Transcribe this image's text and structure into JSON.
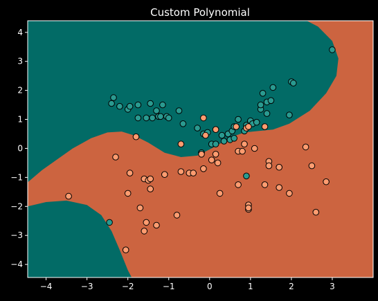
{
  "chart_data": {
    "type": "scatter",
    "title": "Custom Polynomial",
    "xlabel": "",
    "ylabel": "",
    "xlim": [
      -4.45,
      4.0
    ],
    "ylim": [
      -4.45,
      4.4
    ],
    "xticks": [
      -4,
      -3,
      -2,
      -1,
      0,
      1,
      2,
      3
    ],
    "yticks": [
      -4,
      -3,
      -2,
      -1,
      0,
      1,
      2,
      3,
      4
    ],
    "grid": false,
    "background_color": "#000000",
    "region_colors": {
      "class_0": "#026b66",
      "class_1": "#cc6440"
    },
    "point_colors": {
      "class_0": "#2a9a90",
      "class_1": "#ff9c70"
    },
    "series": [
      {
        "class": 0,
        "points": [
          [
            -2.4,
            1.55
          ],
          [
            -2.35,
            1.75
          ],
          [
            -2.2,
            1.45
          ],
          [
            -2.0,
            1.35
          ],
          [
            -1.95,
            1.45
          ],
          [
            -1.75,
            1.5
          ],
          [
            -1.75,
            1.05
          ],
          [
            -1.55,
            1.05
          ],
          [
            -1.45,
            1.55
          ],
          [
            -1.4,
            1.05
          ],
          [
            -1.3,
            1.3
          ],
          [
            -1.25,
            1.1
          ],
          [
            -1.2,
            1.1
          ],
          [
            -1.15,
            1.5
          ],
          [
            -1.05,
            1.1
          ],
          [
            -1.0,
            1.05
          ],
          [
            -0.75,
            1.3
          ],
          [
            -0.65,
            0.85
          ],
          [
            -0.3,
            0.7
          ],
          [
            -0.2,
            -0.15
          ],
          [
            -0.15,
            0.5
          ],
          [
            -0.05,
            0.55
          ],
          [
            0.05,
            0.15
          ],
          [
            0.15,
            0.15
          ],
          [
            0.3,
            0.45
          ],
          [
            0.35,
            0.25
          ],
          [
            0.45,
            0.5
          ],
          [
            0.5,
            0.3
          ],
          [
            0.55,
            0.6
          ],
          [
            0.6,
            0.75
          ],
          [
            0.6,
            0.35
          ],
          [
            0.7,
            1.0
          ],
          [
            0.85,
            0.6
          ],
          [
            0.9,
            0.8
          ],
          [
            1.0,
            0.95
          ],
          [
            1.05,
            0.85
          ],
          [
            1.15,
            0.9
          ],
          [
            1.25,
            1.35
          ],
          [
            1.25,
            1.5
          ],
          [
            1.3,
            1.9
          ],
          [
            1.4,
            1.2
          ],
          [
            1.4,
            1.6
          ],
          [
            1.5,
            1.65
          ],
          [
            1.55,
            2.1
          ],
          [
            1.95,
            1.15
          ],
          [
            2.0,
            2.3
          ],
          [
            2.05,
            2.25
          ],
          [
            3.0,
            3.4
          ],
          [
            -2.45,
            -2.55
          ],
          [
            0.9,
            -0.95
          ]
        ]
      },
      {
        "class": 1,
        "points": [
          [
            -3.45,
            -1.65
          ],
          [
            -2.3,
            -0.3
          ],
          [
            -2.05,
            -3.5
          ],
          [
            -2.0,
            -1.55
          ],
          [
            -1.95,
            -0.85
          ],
          [
            -1.8,
            0.4
          ],
          [
            -1.7,
            -2.05
          ],
          [
            -1.6,
            -2.85
          ],
          [
            -1.6,
            -1.05
          ],
          [
            -1.55,
            -2.55
          ],
          [
            -1.5,
            -1.1
          ],
          [
            -1.45,
            -1.4
          ],
          [
            -1.45,
            -1.05
          ],
          [
            -1.3,
            -2.65
          ],
          [
            -1.1,
            -0.9
          ],
          [
            -0.8,
            -2.3
          ],
          [
            -0.7,
            -0.8
          ],
          [
            -0.7,
            0.15
          ],
          [
            -0.5,
            -0.85
          ],
          [
            -0.4,
            -0.85
          ],
          [
            -0.15,
            1.05
          ],
          [
            -0.15,
            -0.7
          ],
          [
            -0.1,
            0.45
          ],
          [
            0.15,
            -0.2
          ],
          [
            0.15,
            0.65
          ],
          [
            0.2,
            -0.5
          ],
          [
            0.25,
            -1.55
          ],
          [
            0.65,
            0.75
          ],
          [
            0.7,
            -1.25
          ],
          [
            0.7,
            -0.1
          ],
          [
            0.8,
            -0.1
          ],
          [
            0.85,
            0.15
          ],
          [
            0.9,
            0.7
          ],
          [
            0.95,
            0.75
          ],
          [
            0.95,
            -1.95
          ],
          [
            0.95,
            -2.1
          ],
          [
            0.95,
            -2.05
          ],
          [
            1.1,
            0.0
          ],
          [
            1.35,
            0.75
          ],
          [
            1.35,
            -1.25
          ],
          [
            1.45,
            -0.45
          ],
          [
            1.45,
            -0.6
          ],
          [
            1.7,
            -0.65
          ],
          [
            1.7,
            -1.35
          ],
          [
            1.95,
            -1.55
          ],
          [
            2.35,
            0.05
          ],
          [
            2.5,
            -0.6
          ],
          [
            2.6,
            -2.2
          ],
          [
            2.85,
            -1.15
          ],
          [
            -0.2,
            -0.2
          ],
          [
            0.05,
            -0.4
          ]
        ]
      }
    ]
  }
}
